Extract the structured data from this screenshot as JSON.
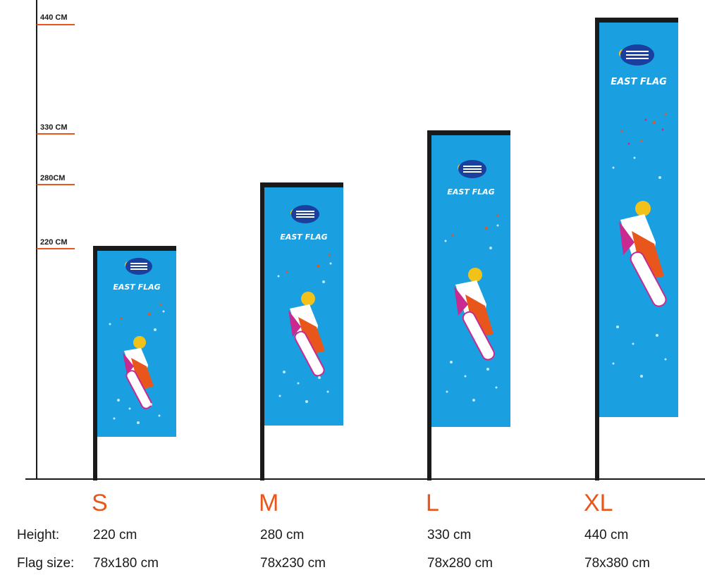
{
  "scale": {
    "marks": [
      {
        "label": "440 CM",
        "height_cm": 440
      },
      {
        "label": "330 CM",
        "height_cm": 330
      },
      {
        "label": "280CM",
        "height_cm": 280
      },
      {
        "label": "220 CM",
        "height_cm": 220
      }
    ]
  },
  "brand": {
    "name": "EAST FLAG"
  },
  "sizes": [
    {
      "letter": "S",
      "height": "220 cm",
      "flag_size": "78x180 cm"
    },
    {
      "letter": "M",
      "height": "280 cm",
      "flag_size": "78x230 cm"
    },
    {
      "letter": "L",
      "height": "330 cm",
      "flag_size": "78x280 cm"
    },
    {
      "letter": "XL",
      "height": "440 cm",
      "flag_size": "78x380 cm"
    }
  ],
  "table": {
    "height_label": "Height:",
    "flag_size_label": "Flag size:"
  },
  "colors": {
    "flag_blue": "#1aa0e0",
    "accent_orange": "#e8561b",
    "pole": "#1a1a1a"
  }
}
